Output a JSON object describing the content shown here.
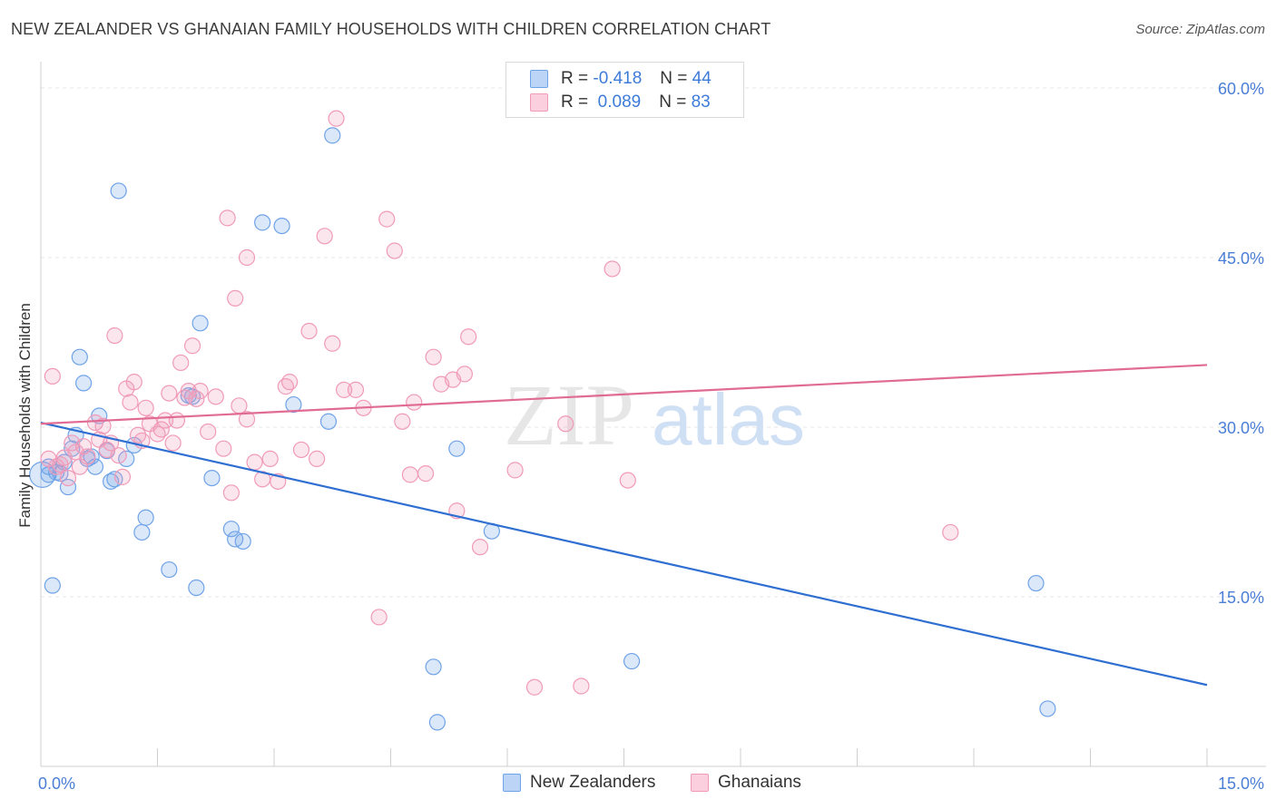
{
  "title": "NEW ZEALANDER VS GHANAIAN FAMILY HOUSEHOLDS WITH CHILDREN CORRELATION CHART",
  "source": "Source: ZipAtlas.com",
  "watermark": {
    "zip": "ZIP",
    "atlas": "atlas"
  },
  "legend": {
    "rows": [
      {
        "r_label": "R =",
        "r_value": "-0.418",
        "n_label": "N =",
        "n_value": "44"
      },
      {
        "r_label": "R =",
        "r_value": "0.089",
        "n_label": "N =",
        "n_value": "83"
      }
    ]
  },
  "chart_data": {
    "type": "scatter",
    "title": "NEW ZEALANDER VS GHANAIAN FAMILY HOUSEHOLDS WITH CHILDREN CORRELATION CHART",
    "xlabel": "",
    "ylabel": "Family Households with Children",
    "xlim": [
      0,
      15
    ],
    "ylim": [
      0,
      60
    ],
    "x_tick_labels": [
      "0.0%",
      "15.0%"
    ],
    "y_ticks": [
      15,
      30,
      45,
      60
    ],
    "y_tick_labels": [
      "15.0%",
      "30.0%",
      "45.0%",
      "60.0%"
    ],
    "grid": true,
    "legend_position": "top-center",
    "colors": {
      "New Zealanders": "#6fa3e8",
      "Ghanaians": "#f19ab8",
      "nz_line": "#2f6fd1",
      "gh_line": "#e06b94"
    },
    "series": [
      {
        "name": "New Zealanders",
        "x": [
          0.1,
          0.1,
          0.25,
          0.3,
          0.35,
          0.45,
          0.5,
          0.55,
          0.6,
          0.65,
          0.7,
          0.75,
          0.85,
          0.95,
          1.0,
          1.1,
          1.2,
          1.3,
          1.35,
          1.65,
          1.9,
          1.95,
          2.0,
          2.05,
          2.2,
          2.45,
          2.5,
          2.6,
          2.85,
          3.1,
          3.25,
          3.7,
          3.75,
          5.05,
          5.1,
          5.35,
          5.8,
          7.6,
          12.8,
          12.95,
          0.15,
          0.2,
          0.4,
          0.9
        ],
        "y": [
          26.5,
          25.8,
          25.9,
          26.9,
          24.7,
          29.3,
          36.2,
          33.9,
          27.2,
          27.4,
          26.5,
          31.0,
          27.9,
          25.4,
          50.9,
          27.2,
          28.4,
          20.7,
          22.0,
          17.4,
          32.8,
          32.7,
          15.8,
          39.2,
          25.5,
          21.0,
          20.1,
          19.9,
          48.1,
          47.8,
          32.0,
          30.5,
          55.8,
          8.8,
          3.9,
          28.1,
          20.8,
          9.3,
          16.2,
          5.1,
          16.0,
          26.0,
          28.1,
          25.2
        ],
        "r": "-0.418",
        "n": "44"
      },
      {
        "name": "Ghanaians",
        "x": [
          0.1,
          0.2,
          0.25,
          0.3,
          0.35,
          0.4,
          0.45,
          0.5,
          0.55,
          0.6,
          0.7,
          0.75,
          0.8,
          0.85,
          0.9,
          1.0,
          1.05,
          1.1,
          1.15,
          1.2,
          1.25,
          1.3,
          1.35,
          1.4,
          1.5,
          1.55,
          1.6,
          1.65,
          1.7,
          1.75,
          1.8,
          1.85,
          1.9,
          1.95,
          2.0,
          2.05,
          2.15,
          2.25,
          2.35,
          2.4,
          2.45,
          2.5,
          2.55,
          2.65,
          2.75,
          2.85,
          2.95,
          3.05,
          3.15,
          3.2,
          3.35,
          3.45,
          3.55,
          3.65,
          3.75,
          3.8,
          3.9,
          4.05,
          4.15,
          4.35,
          4.45,
          4.55,
          4.65,
          4.75,
          4.8,
          4.95,
          5.05,
          5.15,
          5.3,
          5.35,
          5.45,
          5.5,
          5.65,
          6.1,
          6.35,
          6.75,
          6.95,
          7.35,
          7.55,
          11.7,
          0.15,
          0.95,
          2.65
        ],
        "y": [
          27.2,
          26.5,
          26.7,
          27.3,
          25.5,
          28.6,
          27.8,
          26.5,
          28.3,
          27.4,
          30.4,
          28.9,
          30.1,
          28.0,
          28.6,
          27.5,
          25.6,
          33.4,
          32.2,
          34.0,
          29.3,
          28.8,
          31.7,
          30.3,
          29.4,
          29.8,
          30.6,
          33.0,
          28.6,
          30.6,
          35.7,
          32.6,
          33.2,
          37.2,
          32.5,
          33.2,
          29.6,
          32.7,
          28.1,
          48.5,
          24.2,
          41.4,
          31.9,
          30.7,
          26.9,
          25.4,
          27.2,
          25.2,
          33.6,
          34.0,
          28.0,
          38.5,
          27.2,
          46.9,
          37.4,
          57.3,
          33.3,
          33.3,
          31.7,
          13.2,
          48.4,
          45.6,
          30.5,
          25.8,
          32.2,
          25.9,
          36.2,
          33.8,
          34.2,
          22.6,
          34.7,
          38.0,
          19.4,
          26.2,
          7.0,
          30.3,
          7.1,
          44.0,
          25.3,
          20.7,
          34.5,
          38.1,
          45.0
        ]
      }
    ],
    "trendlines": [
      {
        "series": "New Zealanders",
        "x": [
          0,
          15
        ],
        "y": [
          30.4,
          7.2
        ]
      },
      {
        "series": "Ghanaians",
        "x": [
          0,
          15
        ],
        "y": [
          30.3,
          35.5
        ]
      }
    ]
  },
  "bottom_legend": {
    "items": [
      {
        "label": "New Zealanders"
      },
      {
        "label": "Ghanaians"
      }
    ]
  }
}
